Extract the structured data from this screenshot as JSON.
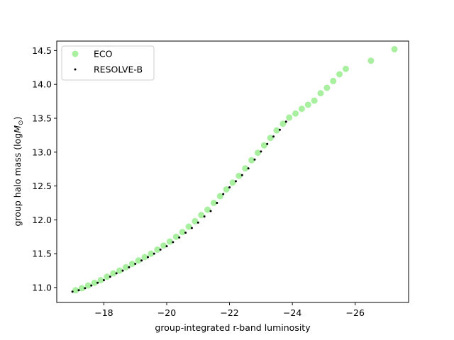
{
  "chart_data": {
    "type": "scatter",
    "xlabel": "group-integrated r-band luminosity",
    "ylabel": "group halo mass (log",
    "ylabel_math": "M",
    "ylabel_sub": "⊙",
    "ylabel_close": ")",
    "xlim": [
      -16.5,
      -27.7
    ],
    "ylim": [
      10.78,
      14.64
    ],
    "xticks": [
      -18,
      -20,
      -22,
      -24,
      -26
    ],
    "xtick_labels": [
      "−18",
      "−20",
      "−22",
      "−24",
      "−26"
    ],
    "yticks": [
      11.0,
      11.5,
      12.0,
      12.5,
      13.0,
      13.5,
      14.0,
      14.5
    ],
    "ytick_labels": [
      "11.0",
      "11.5",
      "12.0",
      "12.5",
      "13.0",
      "13.5",
      "14.0",
      "14.5"
    ],
    "legend_position": "top-left",
    "series": [
      {
        "name": "ECO",
        "color": "#a8f0a0",
        "marker": "circle-large",
        "points": [
          [
            -17.1,
            10.96
          ],
          [
            -17.3,
            10.99
          ],
          [
            -17.5,
            11.03
          ],
          [
            -17.7,
            11.07
          ],
          [
            -17.9,
            11.11
          ],
          [
            -18.1,
            11.16
          ],
          [
            -18.3,
            11.21
          ],
          [
            -18.5,
            11.25
          ],
          [
            -18.7,
            11.3
          ],
          [
            -18.9,
            11.35
          ],
          [
            -19.1,
            11.4
          ],
          [
            -19.3,
            11.45
          ],
          [
            -19.5,
            11.5
          ],
          [
            -19.7,
            11.56
          ],
          [
            -19.9,
            11.62
          ],
          [
            -20.1,
            11.68
          ],
          [
            -20.3,
            11.75
          ],
          [
            -20.5,
            11.82
          ],
          [
            -20.7,
            11.9
          ],
          [
            -20.9,
            11.98
          ],
          [
            -21.1,
            12.07
          ],
          [
            -21.3,
            12.15
          ],
          [
            -21.5,
            12.25
          ],
          [
            -21.7,
            12.35
          ],
          [
            -21.9,
            12.45
          ],
          [
            -22.1,
            12.55
          ],
          [
            -22.3,
            12.65
          ],
          [
            -22.5,
            12.76
          ],
          [
            -22.7,
            12.88
          ],
          [
            -22.9,
            12.99
          ],
          [
            -23.1,
            13.1
          ],
          [
            -23.3,
            13.21
          ],
          [
            -23.5,
            13.32
          ],
          [
            -23.7,
            13.42
          ],
          [
            -23.9,
            13.51
          ],
          [
            -24.1,
            13.57
          ],
          [
            -24.3,
            13.64
          ],
          [
            -24.5,
            13.7
          ],
          [
            -24.7,
            13.76
          ],
          [
            -24.9,
            13.87
          ],
          [
            -25.1,
            13.95
          ],
          [
            -25.3,
            14.05
          ],
          [
            -25.5,
            14.15
          ],
          [
            -25.7,
            14.23
          ],
          [
            -26.5,
            14.35
          ],
          [
            -27.25,
            14.52
          ]
        ]
      },
      {
        "name": "RESOLVE-B",
        "color": "#000000",
        "marker": "dot-small",
        "points": [
          [
            -17.0,
            10.94
          ],
          [
            -17.2,
            10.96
          ],
          [
            -17.4,
            10.99
          ],
          [
            -17.6,
            11.03
          ],
          [
            -17.8,
            11.07
          ],
          [
            -18.0,
            11.11
          ],
          [
            -18.2,
            11.16
          ],
          [
            -18.4,
            11.21
          ],
          [
            -18.6,
            11.25
          ],
          [
            -18.8,
            11.3
          ],
          [
            -19.0,
            11.35
          ],
          [
            -19.2,
            11.4
          ],
          [
            -19.4,
            11.45
          ],
          [
            -19.6,
            11.5
          ],
          [
            -19.8,
            11.56
          ],
          [
            -20.0,
            11.61
          ],
          [
            -20.2,
            11.67
          ],
          [
            -20.4,
            11.74
          ],
          [
            -20.6,
            11.81
          ],
          [
            -20.8,
            11.88
          ],
          [
            -21.0,
            11.96
          ],
          [
            -21.2,
            12.05
          ],
          [
            -21.4,
            12.13
          ],
          [
            -21.6,
            12.25
          ],
          [
            -21.8,
            12.38
          ],
          [
            -22.0,
            12.48
          ],
          [
            -22.2,
            12.57
          ],
          [
            -22.4,
            12.66
          ],
          [
            -22.6,
            12.76
          ],
          [
            -22.8,
            12.89
          ],
          [
            -23.0,
            13.01
          ],
          [
            -23.2,
            13.12
          ],
          [
            -23.4,
            13.23
          ],
          [
            -23.6,
            13.33
          ],
          [
            -23.8,
            13.45
          ]
        ]
      }
    ]
  }
}
